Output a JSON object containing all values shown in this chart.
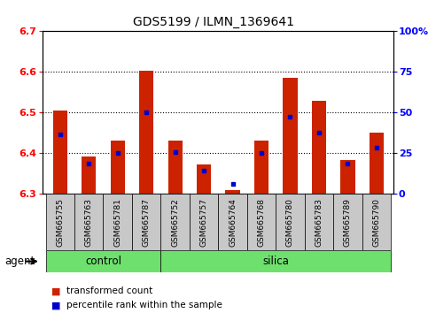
{
  "title": "GDS5199 / ILMN_1369641",
  "samples": [
    "GSM665755",
    "GSM665763",
    "GSM665781",
    "GSM665787",
    "GSM665752",
    "GSM665757",
    "GSM665764",
    "GSM665768",
    "GSM665780",
    "GSM665783",
    "GSM665789",
    "GSM665790"
  ],
  "control_count": 4,
  "silica_count": 8,
  "group_names": [
    "control",
    "silica"
  ],
  "green_color": "#6EE06E",
  "gray_color": "#C8C8C8",
  "red_values": [
    6.505,
    6.392,
    6.432,
    6.603,
    6.432,
    6.373,
    6.31,
    6.432,
    6.585,
    6.53,
    6.384,
    6.452
  ],
  "blue_values": [
    6.447,
    6.375,
    6.402,
    6.5,
    6.403,
    6.357,
    6.325,
    6.401,
    6.49,
    6.452,
    6.375,
    6.415
  ],
  "y_min": 6.3,
  "y_max": 6.7,
  "y_ticks": [
    6.3,
    6.4,
    6.5,
    6.6,
    6.7
  ],
  "right_y_ticks": [
    0,
    25,
    50,
    75,
    100
  ],
  "right_y_labels": [
    "0",
    "25",
    "50",
    "75",
    "100%"
  ],
  "bar_width": 0.5,
  "red_color": "#CC2200",
  "blue_color": "#0000CC",
  "agent_label": "agent",
  "bg_color": "#FFFFFF",
  "legend_items": [
    "transformed count",
    "percentile rank within the sample"
  ]
}
